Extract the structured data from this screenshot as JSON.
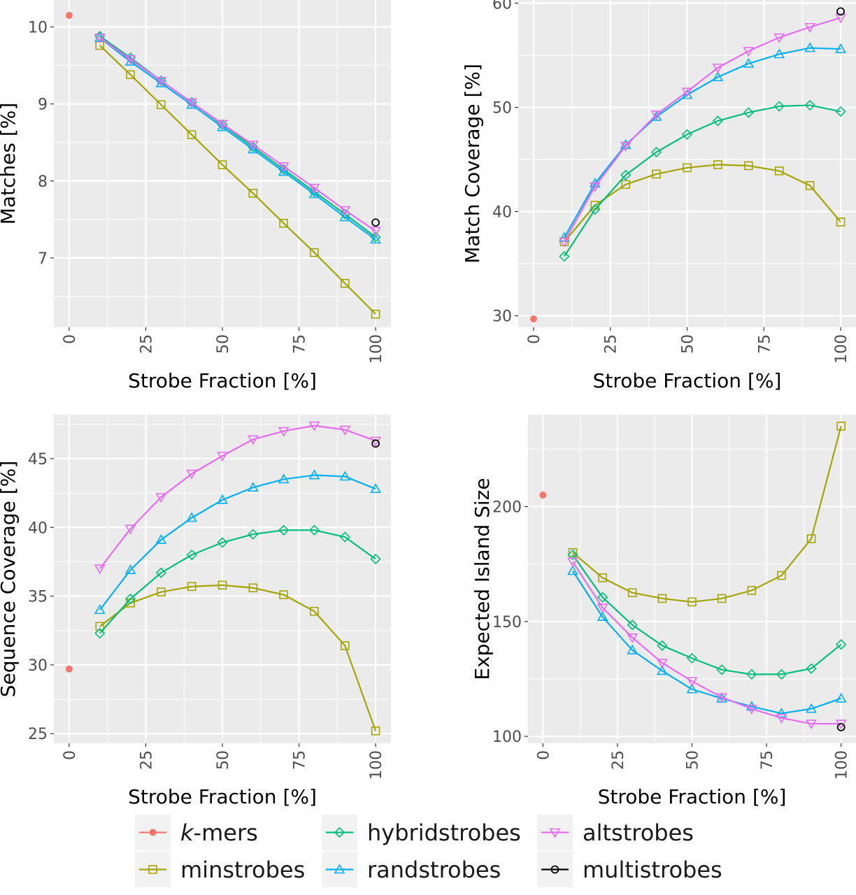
{
  "series_styles": [
    {
      "key": "kmers",
      "prefix": "k",
      "suffix": "-mers",
      "color": "#F8766D",
      "shape": "circle-filled"
    },
    {
      "key": "minstrobes",
      "name": "minstrobes",
      "color": "#A3A500",
      "shape": "square"
    },
    {
      "key": "hybridstrobes",
      "name": "hybridstrobes",
      "color": "#00BF7D",
      "shape": "diamond"
    },
    {
      "key": "randstrobes",
      "name": "randstrobes",
      "color": "#00B0F6",
      "shape": "triangle-up"
    },
    {
      "key": "altstrobes",
      "name": "altstrobes",
      "color": "#E76BF3",
      "shape": "triangle-down"
    },
    {
      "key": "multistrobes",
      "name": "multistrobes",
      "color": "#000000",
      "shape": "circle-open"
    }
  ],
  "legend": {
    "placement": "bottom",
    "items": [
      {
        "key": "kmers",
        "prefix": "k",
        "suffix": "-mers"
      },
      {
        "key": "minstrobes",
        "label": "minstrobes"
      },
      {
        "key": "hybridstrobes",
        "label": "hybridstrobes"
      },
      {
        "key": "randstrobes",
        "label": "randstrobes"
      },
      {
        "key": "altstrobes",
        "label": "altstrobes"
      },
      {
        "key": "multistrobes",
        "label": "multistrobes"
      }
    ]
  },
  "chart_data": [
    {
      "type": "line",
      "xlabel": "Strobe Fraction [%]",
      "ylabel": "Matches [%]",
      "xlim": [
        -5,
        105
      ],
      "ylim": [
        6.1,
        10.35
      ],
      "x_ticks": [
        0,
        25,
        50,
        75,
        100
      ],
      "y_ticks": [
        7,
        8,
        9,
        10
      ],
      "grid": true,
      "series": [
        {
          "key": "kmers",
          "points": [
            [
              0,
              10.15
            ]
          ]
        },
        {
          "key": "minstrobes",
          "points": [
            [
              10,
              9.76
            ],
            [
              20,
              9.38
            ],
            [
              30,
              8.99
            ],
            [
              40,
              8.6
            ],
            [
              50,
              8.21
            ],
            [
              60,
              7.84
            ],
            [
              70,
              7.45
            ],
            [
              80,
              7.07
            ],
            [
              90,
              6.67
            ],
            [
              100,
              6.27
            ]
          ]
        },
        {
          "key": "hybridstrobes",
          "points": [
            [
              10,
              9.88
            ],
            [
              20,
              9.6
            ],
            [
              30,
              9.3
            ],
            [
              40,
              9.02
            ],
            [
              50,
              8.73
            ],
            [
              60,
              8.44
            ],
            [
              70,
              8.15
            ],
            [
              80,
              7.86
            ],
            [
              90,
              7.57
            ],
            [
              100,
              7.27
            ]
          ]
        },
        {
          "key": "randstrobes",
          "points": [
            [
              10,
              9.86
            ],
            [
              20,
              9.55
            ],
            [
              30,
              9.27
            ],
            [
              40,
              8.99
            ],
            [
              50,
              8.7
            ],
            [
              60,
              8.41
            ],
            [
              70,
              8.12
            ],
            [
              80,
              7.83
            ],
            [
              90,
              7.53
            ],
            [
              100,
              7.24
            ]
          ]
        },
        {
          "key": "altstrobes",
          "points": [
            [
              10,
              9.86
            ],
            [
              20,
              9.58
            ],
            [
              30,
              9.3
            ],
            [
              40,
              9.02
            ],
            [
              50,
              8.74
            ],
            [
              60,
              8.47
            ],
            [
              70,
              8.19
            ],
            [
              80,
              7.91
            ],
            [
              90,
              7.62
            ],
            [
              100,
              7.35
            ]
          ]
        },
        {
          "key": "multistrobes",
          "points": [
            [
              100,
              7.46
            ]
          ]
        }
      ]
    },
    {
      "type": "line",
      "xlabel": "Strobe Fraction [%]",
      "ylabel": "Match Coverage [%]",
      "xlim": [
        -5,
        105
      ],
      "ylim": [
        28.9,
        60.3
      ],
      "x_ticks": [
        0,
        25,
        50,
        75,
        100
      ],
      "y_ticks": [
        30,
        40,
        50,
        60
      ],
      "grid": true,
      "series": [
        {
          "key": "kmers",
          "points": [
            [
              0,
              29.7
            ]
          ]
        },
        {
          "key": "minstrobes",
          "points": [
            [
              10,
              37.1
            ],
            [
              20,
              40.6
            ],
            [
              30,
              42.6
            ],
            [
              40,
              43.6
            ],
            [
              50,
              44.2
            ],
            [
              60,
              44.5
            ],
            [
              70,
              44.4
            ],
            [
              80,
              43.9
            ],
            [
              90,
              42.5
            ],
            [
              100,
              39.0
            ]
          ]
        },
        {
          "key": "hybridstrobes",
          "points": [
            [
              10,
              35.7
            ],
            [
              20,
              40.2
            ],
            [
              30,
              43.5
            ],
            [
              40,
              45.7
            ],
            [
              50,
              47.4
            ],
            [
              60,
              48.7
            ],
            [
              70,
              49.5
            ],
            [
              80,
              50.1
            ],
            [
              90,
              50.2
            ],
            [
              100,
              49.6
            ]
          ]
        },
        {
          "key": "randstrobes",
          "points": [
            [
              10,
              37.5
            ],
            [
              20,
              42.7
            ],
            [
              30,
              46.4
            ],
            [
              40,
              49.1
            ],
            [
              50,
              51.2
            ],
            [
              60,
              52.9
            ],
            [
              70,
              54.2
            ],
            [
              80,
              55.1
            ],
            [
              90,
              55.7
            ],
            [
              100,
              55.6
            ]
          ]
        },
        {
          "key": "altstrobes",
          "points": [
            [
              10,
              37.1
            ],
            [
              20,
              42.4
            ],
            [
              30,
              46.3
            ],
            [
              40,
              49.3
            ],
            [
              50,
              51.5
            ],
            [
              60,
              53.8
            ],
            [
              70,
              55.4
            ],
            [
              80,
              56.7
            ],
            [
              90,
              57.7
            ],
            [
              100,
              58.6
            ]
          ]
        },
        {
          "key": "multistrobes",
          "points": [
            [
              100,
              59.2
            ]
          ]
        }
      ]
    },
    {
      "type": "line",
      "xlabel": "Strobe Fraction [%]",
      "ylabel": "Sequence Coverage [%]",
      "xlim": [
        -5,
        105
      ],
      "ylim": [
        24.3,
        48.2
      ],
      "x_ticks": [
        0,
        25,
        50,
        75,
        100
      ],
      "y_ticks": [
        25,
        30,
        35,
        40,
        45
      ],
      "grid": true,
      "series": [
        {
          "key": "kmers",
          "points": [
            [
              0,
              29.7
            ]
          ]
        },
        {
          "key": "minstrobes",
          "points": [
            [
              10,
              32.8
            ],
            [
              20,
              34.5
            ],
            [
              30,
              35.3
            ],
            [
              40,
              35.7
            ],
            [
              50,
              35.8
            ],
            [
              60,
              35.6
            ],
            [
              70,
              35.1
            ],
            [
              80,
              33.9
            ],
            [
              90,
              31.4
            ],
            [
              100,
              25.2
            ]
          ]
        },
        {
          "key": "hybridstrobes",
          "points": [
            [
              10,
              32.3
            ],
            [
              20,
              34.8
            ],
            [
              30,
              36.7
            ],
            [
              40,
              38.0
            ],
            [
              50,
              38.9
            ],
            [
              60,
              39.5
            ],
            [
              70,
              39.8
            ],
            [
              80,
              39.8
            ],
            [
              90,
              39.3
            ],
            [
              100,
              37.7
            ]
          ]
        },
        {
          "key": "randstrobes",
          "points": [
            [
              10,
              34.0
            ],
            [
              20,
              36.9
            ],
            [
              30,
              39.1
            ],
            [
              40,
              40.7
            ],
            [
              50,
              42.0
            ],
            [
              60,
              42.9
            ],
            [
              70,
              43.5
            ],
            [
              80,
              43.8
            ],
            [
              90,
              43.7
            ],
            [
              100,
              42.8
            ]
          ]
        },
        {
          "key": "altstrobes",
          "points": [
            [
              10,
              37.0
            ],
            [
              20,
              39.9
            ],
            [
              30,
              42.2
            ],
            [
              40,
              43.9
            ],
            [
              50,
              45.2
            ],
            [
              60,
              46.4
            ],
            [
              70,
              47.0
            ],
            [
              80,
              47.4
            ],
            [
              90,
              47.1
            ],
            [
              100,
              46.3
            ]
          ]
        },
        {
          "key": "multistrobes",
          "points": [
            [
              100,
              46.1
            ]
          ]
        }
      ]
    },
    {
      "type": "line",
      "xlabel": "Strobe Fraction [%]",
      "ylabel": "Expected Island Size",
      "xlim": [
        -5,
        105
      ],
      "ylim": [
        97,
        240
      ],
      "x_ticks": [
        0,
        25,
        50,
        75,
        100
      ],
      "y_ticks": [
        100,
        150,
        200
      ],
      "grid": true,
      "series": [
        {
          "key": "kmers",
          "points": [
            [
              0,
              205
            ]
          ]
        },
        {
          "key": "minstrobes",
          "points": [
            [
              10,
              180
            ],
            [
              20,
              169
            ],
            [
              30,
              162.5
            ],
            [
              40,
              160
            ],
            [
              50,
              158.5
            ],
            [
              60,
              160
            ],
            [
              70,
              163.5
            ],
            [
              80,
              170
            ],
            [
              90,
              186
            ],
            [
              100,
              235
            ]
          ]
        },
        {
          "key": "hybridstrobes",
          "points": [
            [
              10,
              179
            ],
            [
              20,
              160.5
            ],
            [
              30,
              148.5
            ],
            [
              40,
              139.5
            ],
            [
              50,
              134
            ],
            [
              60,
              129
            ],
            [
              70,
              127
            ],
            [
              80,
              127
            ],
            [
              90,
              129.5
            ],
            [
              100,
              140
            ]
          ]
        },
        {
          "key": "randstrobes",
          "points": [
            [
              10,
              172
            ],
            [
              20,
              152
            ],
            [
              30,
              137.5
            ],
            [
              40,
              128.5
            ],
            [
              50,
              120.5
            ],
            [
              60,
              116.5
            ],
            [
              70,
              113
            ],
            [
              80,
              110
            ],
            [
              90,
              112
            ],
            [
              100,
              116.5
            ]
          ]
        },
        {
          "key": "altstrobes",
          "points": [
            [
              10,
              176
            ],
            [
              20,
              156
            ],
            [
              30,
              143
            ],
            [
              40,
              132
            ],
            [
              50,
              124
            ],
            [
              60,
              117
            ],
            [
              70,
              112
            ],
            [
              80,
              108
            ],
            [
              90,
              105.5
            ],
            [
              100,
              105.5
            ]
          ]
        },
        {
          "key": "multistrobes",
          "points": [
            [
              100,
              104
            ]
          ]
        }
      ]
    }
  ]
}
